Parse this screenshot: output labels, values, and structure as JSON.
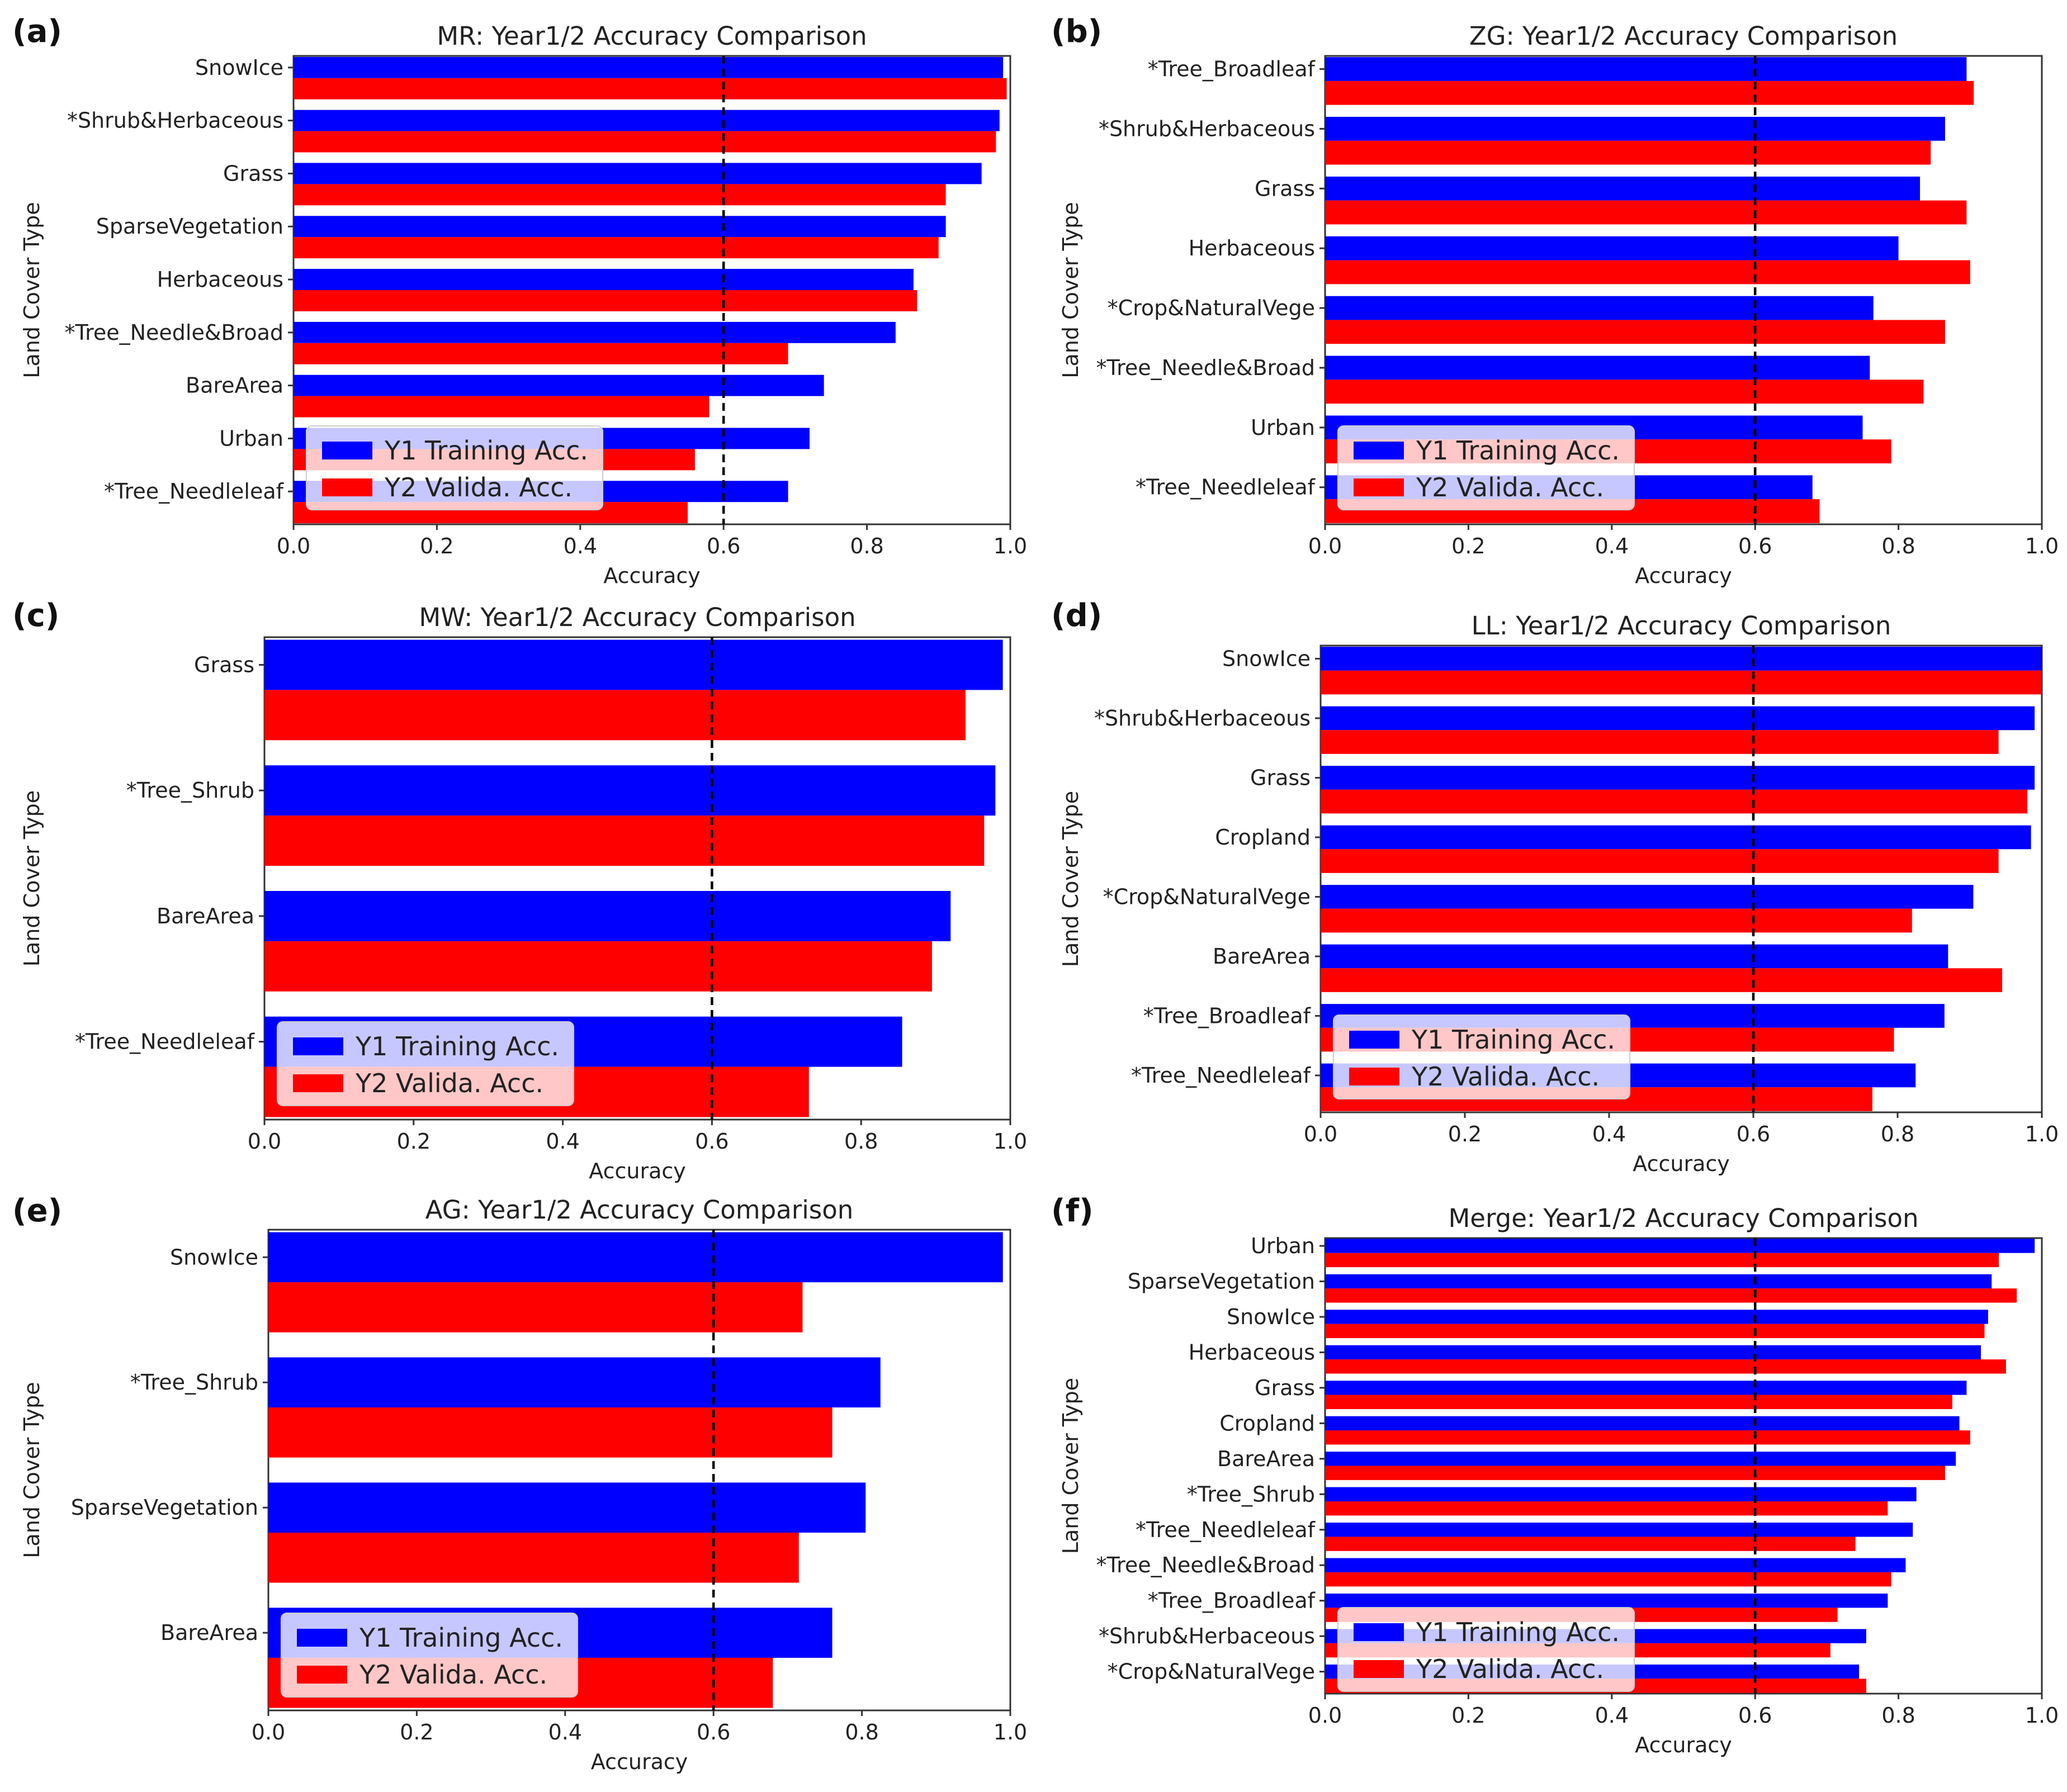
{
  "figure": {
    "legend": {
      "y1": "Y1 Training Acc.",
      "y2": "Y2 Valida. Acc."
    },
    "xlabel": "Accuracy",
    "ylabel": "Land Cover Type",
    "xticks": [
      "0.0",
      "0.2",
      "0.4",
      "0.6",
      "0.8",
      "1.0"
    ],
    "threshold": 0.6,
    "colors": {
      "y1": "#0000ff",
      "y2": "#ff0000"
    }
  },
  "chart_data": [
    {
      "panel": "(a)",
      "type": "bar",
      "orientation": "horizontal",
      "title": "MR: Year1/2 Accuracy Comparison",
      "xlabel": "Accuracy",
      "ylabel": "Land Cover Type",
      "xlim": [
        0,
        1
      ],
      "categories": [
        "SnowIce",
        "*Shrub&Herbaceous",
        "Grass",
        "SparseVegetation",
        "Herbaceous",
        "*Tree_Needle&Broad",
        "BareArea",
        "Urban",
        "*Tree_Needleleaf"
      ],
      "series": [
        {
          "name": "Y1 Training Acc.",
          "values": [
            0.99,
            0.985,
            0.96,
            0.91,
            0.865,
            0.84,
            0.74,
            0.72,
            0.69
          ]
        },
        {
          "name": "Y2 Valida. Acc.",
          "values": [
            0.995,
            0.98,
            0.91,
            0.9,
            0.87,
            0.69,
            0.58,
            0.56,
            0.55
          ]
        }
      ]
    },
    {
      "panel": "(b)",
      "type": "bar",
      "orientation": "horizontal",
      "title": "ZG: Year1/2 Accuracy Comparison",
      "xlabel": "Accuracy",
      "ylabel": "Land Cover Type",
      "xlim": [
        0,
        1
      ],
      "categories": [
        "*Tree_Broadleaf",
        "*Shrub&Herbaceous",
        "Grass",
        "Herbaceous",
        "*Crop&NaturalVege",
        "*Tree_Needle&Broad",
        "Urban",
        "*Tree_Needleleaf"
      ],
      "series": [
        {
          "name": "Y1 Training Acc.",
          "values": [
            0.895,
            0.865,
            0.83,
            0.8,
            0.765,
            0.76,
            0.75,
            0.68
          ]
        },
        {
          "name": "Y2 Valida. Acc.",
          "values": [
            0.905,
            0.845,
            0.895,
            0.9,
            0.865,
            0.835,
            0.79,
            0.69
          ]
        }
      ]
    },
    {
      "panel": "(c)",
      "type": "bar",
      "orientation": "horizontal",
      "title": "MW: Year1/2 Accuracy Comparison",
      "xlabel": "Accuracy",
      "ylabel": "Land Cover Type",
      "xlim": [
        0,
        1
      ],
      "categories": [
        "Grass",
        "*Tree_Shrub",
        "BareArea",
        "*Tree_Needleleaf"
      ],
      "series": [
        {
          "name": "Y1 Training Acc.",
          "values": [
            0.99,
            0.98,
            0.92,
            0.855
          ]
        },
        {
          "name": "Y2 Valida. Acc.",
          "values": [
            0.94,
            0.965,
            0.895,
            0.73
          ]
        }
      ]
    },
    {
      "panel": "(d)",
      "type": "bar",
      "orientation": "horizontal",
      "title": "LL: Year1/2 Accuracy Comparison",
      "xlabel": "Accuracy",
      "ylabel": "Land Cover Type",
      "xlim": [
        0,
        1
      ],
      "categories": [
        "SnowIce",
        "*Shrub&Herbaceous",
        "Grass",
        "Cropland",
        "*Crop&NaturalVege",
        "BareArea",
        "*Tree_Broadleaf",
        "*Tree_Needleleaf"
      ],
      "series": [
        {
          "name": "Y1 Training Acc.",
          "values": [
            1.0,
            0.99,
            0.99,
            0.985,
            0.905,
            0.87,
            0.865,
            0.825
          ]
        },
        {
          "name": "Y2 Valida. Acc.",
          "values": [
            1.0,
            0.94,
            0.98,
            0.94,
            0.82,
            0.945,
            0.795,
            0.765
          ]
        }
      ]
    },
    {
      "panel": "(e)",
      "type": "bar",
      "orientation": "horizontal",
      "title": "AG: Year1/2 Accuracy Comparison",
      "xlabel": "Accuracy",
      "ylabel": "Land Cover Type",
      "xlim": [
        0,
        1
      ],
      "categories": [
        "SnowIce",
        "*Tree_Shrub",
        "SparseVegetation",
        "BareArea"
      ],
      "series": [
        {
          "name": "Y1 Training Acc.",
          "values": [
            0.99,
            0.825,
            0.805,
            0.76
          ]
        },
        {
          "name": "Y2 Valida. Acc.",
          "values": [
            0.72,
            0.76,
            0.715,
            0.68
          ]
        }
      ]
    },
    {
      "panel": "(f)",
      "type": "bar",
      "orientation": "horizontal",
      "title": "Merge: Year1/2 Accuracy Comparison",
      "xlabel": "Accuracy",
      "ylabel": "Land Cover Type",
      "xlim": [
        0,
        1
      ],
      "categories": [
        "Urban",
        "SparseVegetation",
        "SnowIce",
        "Herbaceous",
        "Grass",
        "Cropland",
        "BareArea",
        "*Tree_Shrub",
        "*Tree_Needleleaf",
        "*Tree_Needle&Broad",
        "*Tree_Broadleaf",
        "*Shrub&Herbaceous",
        "*Crop&NaturalVege"
      ],
      "series": [
        {
          "name": "Y1 Training Acc.",
          "values": [
            0.99,
            0.93,
            0.925,
            0.915,
            0.895,
            0.885,
            0.88,
            0.825,
            0.82,
            0.81,
            0.785,
            0.755,
            0.745
          ]
        },
        {
          "name": "Y2 Valida. Acc.",
          "values": [
            0.94,
            0.965,
            0.92,
            0.95,
            0.875,
            0.9,
            0.865,
            0.785,
            0.74,
            0.79,
            0.715,
            0.705,
            0.755
          ]
        }
      ]
    }
  ]
}
